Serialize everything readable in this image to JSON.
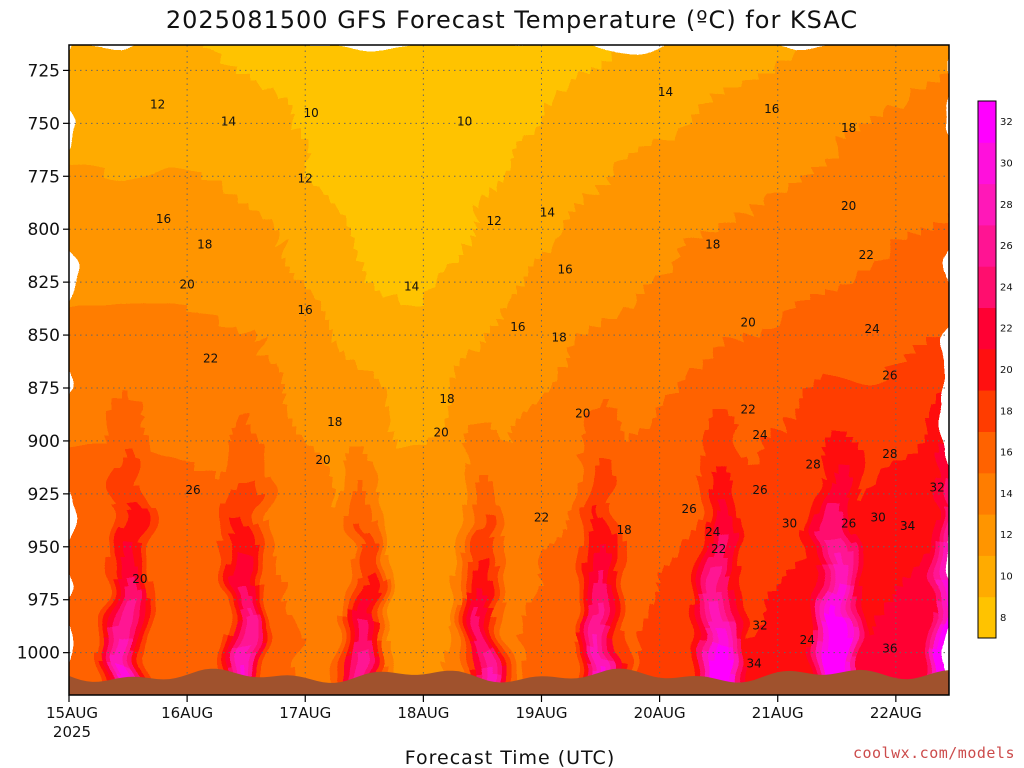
{
  "chart_data": {
    "type": "heatmap",
    "title": "2025081500 GFS Forecast Temperature (ºC) for KSAC",
    "xlabel": "Forecast Time (UTC)",
    "ylabel": "",
    "y_scale": "pressure (hPa), reversed",
    "y_ticks": [
      "725",
      "750",
      "775",
      "800",
      "825",
      "850",
      "875",
      "900",
      "925",
      "950",
      "975",
      "1000"
    ],
    "y_values": [
      725,
      750,
      775,
      800,
      825,
      850,
      875,
      900,
      925,
      950,
      975,
      1000
    ],
    "ylim": [
      713,
      1020
    ],
    "x_ticks": [
      "15AUG",
      "16AUG",
      "17AUG",
      "18AUG",
      "19AUG",
      "20AUG",
      "21AUG",
      "22AUG"
    ],
    "x_tick_year": "2025",
    "xlim_days": [
      0,
      7.45
    ],
    "grid": true,
    "contour_interval": 2,
    "colorbar": {
      "ticks": [
        "8",
        "10",
        "12",
        "14",
        "16",
        "18",
        "20",
        "22",
        "24",
        "26",
        "28",
        "30",
        "32"
      ],
      "levels": [
        8,
        10,
        12,
        14,
        16,
        18,
        20,
        22,
        24,
        26,
        28,
        30,
        32
      ],
      "colors": [
        "#ffc300",
        "#ffab00",
        "#ff9500",
        "#ff7d00",
        "#ff6200",
        "#ff3c00",
        "#ff1010",
        "#ff0033",
        "#ff0e6e",
        "#ff1493",
        "#ff18b8",
        "#ff10dc",
        "#ff00ff"
      ]
    },
    "contour_labels": [
      {
        "t": 0.75,
        "p": 743,
        "v": "12"
      },
      {
        "t": 1.35,
        "p": 751,
        "v": "14"
      },
      {
        "t": 2.05,
        "p": 747,
        "v": "10"
      },
      {
        "t": 3.35,
        "p": 751,
        "v": "10"
      },
      {
        "t": 2.0,
        "p": 778,
        "v": "12"
      },
      {
        "t": 0.8,
        "p": 797,
        "v": "16"
      },
      {
        "t": 1.15,
        "p": 809,
        "v": "18"
      },
      {
        "t": 3.6,
        "p": 798,
        "v": "12"
      },
      {
        "t": 4.05,
        "p": 794,
        "v": "14"
      },
      {
        "t": 5.05,
        "p": 737,
        "v": "14"
      },
      {
        "t": 5.95,
        "p": 745,
        "v": "16"
      },
      {
        "t": 6.6,
        "p": 754,
        "v": "18"
      },
      {
        "t": 6.6,
        "p": 791,
        "v": "20"
      },
      {
        "t": 6.75,
        "p": 814,
        "v": "22"
      },
      {
        "t": 1.0,
        "p": 828,
        "v": "20"
      },
      {
        "t": 2.0,
        "p": 840,
        "v": "16"
      },
      {
        "t": 2.9,
        "p": 829,
        "v": "14"
      },
      {
        "t": 4.2,
        "p": 821,
        "v": "16"
      },
      {
        "t": 3.8,
        "p": 848,
        "v": "16"
      },
      {
        "t": 4.15,
        "p": 853,
        "v": "18"
      },
      {
        "t": 5.45,
        "p": 809,
        "v": "18"
      },
      {
        "t": 5.75,
        "p": 846,
        "v": "20"
      },
      {
        "t": 6.8,
        "p": 849,
        "v": "24"
      },
      {
        "t": 1.2,
        "p": 863,
        "v": "22"
      },
      {
        "t": 3.2,
        "p": 882,
        "v": "18"
      },
      {
        "t": 2.25,
        "p": 893,
        "v": "18"
      },
      {
        "t": 3.15,
        "p": 898,
        "v": "20"
      },
      {
        "t": 4.35,
        "p": 889,
        "v": "20"
      },
      {
        "t": 2.15,
        "p": 911,
        "v": "20"
      },
      {
        "t": 5.75,
        "p": 887,
        "v": "22"
      },
      {
        "t": 6.95,
        "p": 871,
        "v": "26"
      },
      {
        "t": 5.85,
        "p": 899,
        "v": "24"
      },
      {
        "t": 6.3,
        "p": 913,
        "v": "28"
      },
      {
        "t": 6.95,
        "p": 908,
        "v": "28"
      },
      {
        "t": 1.05,
        "p": 925,
        "v": "26"
      },
      {
        "t": 7.35,
        "p": 924,
        "v": "32"
      },
      {
        "t": 5.85,
        "p": 925,
        "v": "26"
      },
      {
        "t": 4.0,
        "p": 938,
        "v": "22"
      },
      {
        "t": 5.25,
        "p": 934,
        "v": "26"
      },
      {
        "t": 6.1,
        "p": 941,
        "v": "30"
      },
      {
        "t": 6.6,
        "p": 941,
        "v": "26"
      },
      {
        "t": 6.85,
        "p": 938,
        "v": "30"
      },
      {
        "t": 7.1,
        "p": 942,
        "v": "34"
      },
      {
        "t": 4.7,
        "p": 944,
        "v": "18"
      },
      {
        "t": 5.45,
        "p": 945,
        "v": "24"
      },
      {
        "t": 5.5,
        "p": 953,
        "v": "22"
      },
      {
        "t": 0.6,
        "p": 967,
        "v": "20"
      },
      {
        "t": 5.85,
        "p": 989,
        "v": "32"
      },
      {
        "t": 6.25,
        "p": 996,
        "v": "24"
      },
      {
        "t": 5.8,
        "p": 1007,
        "v": "34"
      },
      {
        "t": 6.95,
        "p": 1000,
        "v": "36"
      }
    ]
  },
  "credit": "coolwx.com/models"
}
